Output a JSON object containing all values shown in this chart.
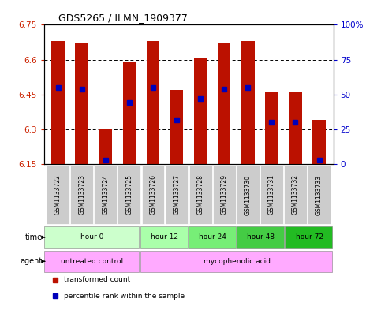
{
  "title": "GDS5265 / ILMN_1909377",
  "samples": [
    "GSM1133722",
    "GSM1133723",
    "GSM1133724",
    "GSM1133725",
    "GSM1133726",
    "GSM1133727",
    "GSM1133728",
    "GSM1133729",
    "GSM1133730",
    "GSM1133731",
    "GSM1133732",
    "GSM1133733"
  ],
  "transformed_counts": [
    6.68,
    6.67,
    6.3,
    6.59,
    6.68,
    6.47,
    6.61,
    6.67,
    6.68,
    6.46,
    6.46,
    6.34
  ],
  "percentile_ranks": [
    55,
    54,
    3,
    44,
    55,
    32,
    47,
    54,
    55,
    30,
    30,
    3
  ],
  "ymin": 6.15,
  "ymax": 6.75,
  "y_ticks": [
    6.15,
    6.3,
    6.45,
    6.6,
    6.75
  ],
  "y_ticks_right": [
    0,
    25,
    50,
    75,
    100
  ],
  "bar_color": "#bb1100",
  "percentile_color": "#0000bb",
  "background_color": "#ffffff",
  "plot_bg_color": "#ffffff",
  "bar_width": 0.55,
  "group_configs": [
    {
      "label": "hour 0",
      "start": 0,
      "end": 4,
      "color": "#ccffcc"
    },
    {
      "label": "hour 12",
      "start": 4,
      "end": 6,
      "color": "#aaffaa"
    },
    {
      "label": "hour 24",
      "start": 6,
      "end": 8,
      "color": "#77ee77"
    },
    {
      "label": "hour 48",
      "start": 8,
      "end": 10,
      "color": "#44cc44"
    },
    {
      "label": "hour 72",
      "start": 10,
      "end": 12,
      "color": "#22bb22"
    }
  ],
  "agent_configs": [
    {
      "label": "untreated control",
      "start": 0,
      "end": 4,
      "color": "#ffaaff"
    },
    {
      "label": "mycophenolic acid",
      "start": 4,
      "end": 12,
      "color": "#ffaaff"
    }
  ],
  "sample_box_color": "#cccccc",
  "legend_items": [
    {
      "label": "transformed count",
      "color": "#bb1100"
    },
    {
      "label": "percentile rank within the sample",
      "color": "#0000bb"
    }
  ]
}
